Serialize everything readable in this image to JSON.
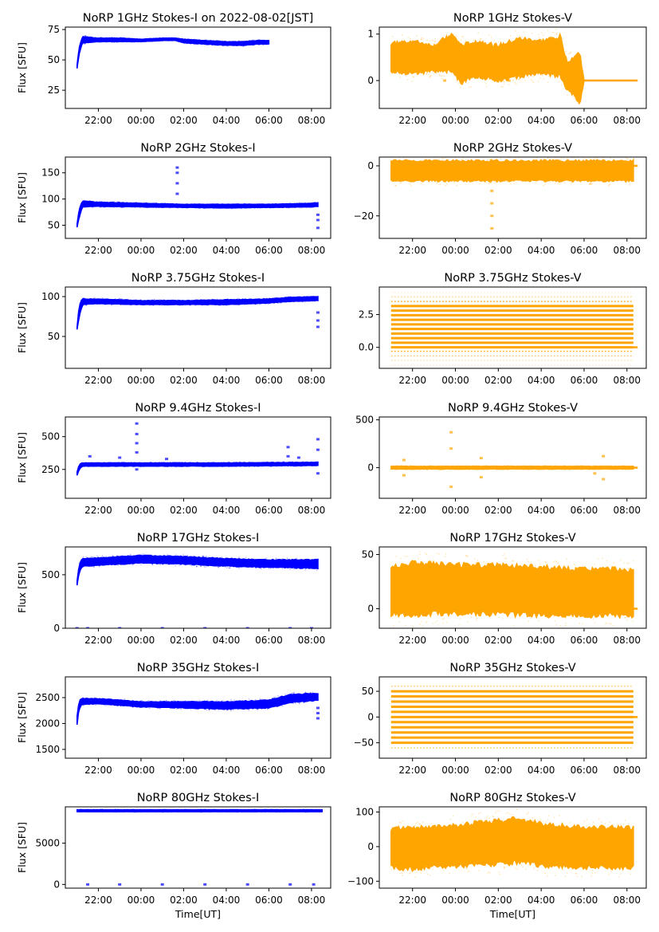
{
  "chart_data": [
    {
      "type": "scatter",
      "title": "NoRP 1GHz Stokes-I on 2022-08-02[JST]",
      "ylabel": "Flux [SFU]",
      "xlabel": "",
      "color": "#0000ff",
      "yticks": [
        25,
        50,
        75
      ],
      "ytick_labels": [
        "25",
        "50",
        "75"
      ],
      "ylim": [
        10,
        77
      ],
      "xtick_labels": [
        "22:00",
        "00:00",
        "02:00",
        "04:00",
        "06:00",
        "08:00"
      ],
      "band": {
        "t": [
          21.0,
          21.1,
          21.25,
          22,
          23,
          24,
          25,
          25.6,
          26,
          27,
          28,
          28.8,
          29.5,
          30.0
        ],
        "lo": [
          43,
          55,
          64,
          65,
          65,
          65,
          66,
          66,
          64,
          63,
          62,
          62,
          63,
          63
        ],
        "hi": [
          46,
          60,
          69,
          68,
          68,
          67,
          68,
          68,
          67,
          66,
          65,
          65,
          66,
          66
        ]
      },
      "outliers": []
    },
    {
      "type": "scatter",
      "title": "NoRP 1GHz Stokes-V",
      "ylabel": "",
      "xlabel": "",
      "color": "#ffa500",
      "yticks": [
        0,
        1
      ],
      "ytick_labels": [
        "0",
        "1"
      ],
      "ylim": [
        -0.6,
        1.15
      ],
      "xtick_labels": [
        "22:00",
        "00:00",
        "02:00",
        "04:00",
        "06:00",
        "08:00"
      ],
      "band": {
        "t": [
          21.0,
          22,
          23,
          23.8,
          24.3,
          25,
          26,
          27,
          28,
          28.9,
          29.2,
          29.5,
          29.8,
          30.0
        ],
        "lo": [
          0.2,
          0.15,
          0.2,
          0.2,
          -0.05,
          0.1,
          0.0,
          0.1,
          0.15,
          0.1,
          -0.2,
          -0.3,
          -0.5,
          0.0
        ],
        "hi": [
          0.8,
          0.85,
          0.75,
          1.0,
          0.75,
          0.85,
          0.75,
          0.9,
          0.85,
          0.95,
          0.4,
          0.5,
          0.6,
          0.0
        ]
      },
      "flat": {
        "t0": 30.0,
        "t1": 32.5,
        "y": 0
      },
      "outliers": [
        {
          "t": 23.5,
          "y": 0
        },
        {
          "t": 26.5,
          "y": 0
        }
      ]
    },
    {
      "type": "scatter",
      "title": "NoRP 2GHz Stokes-I",
      "ylabel": "Flux [SFU]",
      "xlabel": "",
      "color": "#0000ff",
      "yticks": [
        50,
        100,
        150
      ],
      "ytick_labels": [
        "50",
        "100",
        "150"
      ],
      "ylim": [
        25,
        180
      ],
      "xtick_labels": [
        "22:00",
        "00:00",
        "02:00",
        "04:00",
        "06:00",
        "08:00"
      ],
      "band": {
        "t": [
          21.0,
          21.1,
          21.25,
          22,
          24,
          26,
          28,
          30,
          32,
          32.3
        ],
        "lo": [
          46,
          65,
          85,
          86,
          85,
          84,
          83,
          84,
          85,
          86
        ],
        "hi": [
          52,
          80,
          96,
          94,
          92,
          90,
          90,
          90,
          92,
          93
        ]
      },
      "outliers": [
        {
          "t": 25.7,
          "y": 160
        },
        {
          "t": 25.7,
          "y": 150
        },
        {
          "t": 25.7,
          "y": 130
        },
        {
          "t": 25.7,
          "y": 110
        },
        {
          "t": 32.3,
          "y": 45
        },
        {
          "t": 32.3,
          "y": 60
        },
        {
          "t": 32.3,
          "y": 70
        }
      ]
    },
    {
      "type": "scatter",
      "title": "NoRP 2GHz Stokes-V",
      "ylabel": "",
      "xlabel": "",
      "color": "#ffa500",
      "yticks": [
        -20,
        0
      ],
      "ytick_labels": [
        "−20",
        "0"
      ],
      "ylim": [
        -29,
        3.5
      ],
      "xtick_labels": [
        "22:00",
        "00:00",
        "02:00",
        "04:00",
        "06:00",
        "08:00"
      ],
      "band": {
        "t": [
          21.0,
          24,
          28,
          32.3
        ],
        "lo": [
          -6,
          -6,
          -6,
          -6
        ],
        "hi": [
          2,
          2,
          2,
          2
        ]
      },
      "flat": {
        "t0": 32.3,
        "t1": 32.5,
        "y": 0
      },
      "outliers": [
        {
          "t": 25.7,
          "y": -10
        },
        {
          "t": 25.7,
          "y": -15
        },
        {
          "t": 25.7,
          "y": -20
        },
        {
          "t": 25.7,
          "y": -25
        }
      ]
    },
    {
      "type": "scatter",
      "title": "NoRP 3.75GHz Stokes-I",
      "ylabel": "Flux [SFU]",
      "xlabel": "",
      "color": "#0000ff",
      "yticks": [
        50,
        100
      ],
      "ytick_labels": [
        "50",
        "100"
      ],
      "ylim": [
        10,
        112
      ],
      "xtick_labels": [
        "22:00",
        "00:00",
        "02:00",
        "04:00",
        "06:00",
        "08:00"
      ],
      "band": {
        "t": [
          21.0,
          21.1,
          21.25,
          22,
          24,
          26,
          28,
          30,
          31,
          32.3
        ],
        "lo": [
          59,
          75,
          90,
          91,
          90,
          90,
          90,
          92,
          94,
          95
        ],
        "hi": [
          62,
          90,
          97,
          97,
          95,
          95,
          96,
          97,
          99,
          100
        ]
      },
      "outliers": [
        {
          "t": 32.3,
          "y": 62
        },
        {
          "t": 32.3,
          "y": 70
        },
        {
          "t": 32.3,
          "y": 80
        }
      ]
    },
    {
      "type": "scatter",
      "title": "NoRP 3.75GHz Stokes-V",
      "ylabel": "",
      "xlabel": "",
      "color": "#ffa500",
      "yticks": [
        0.0,
        2.5
      ],
      "ytick_labels": [
        "0.0",
        "2.5"
      ],
      "ylim": [
        -1.6,
        4.6
      ],
      "xtick_labels": [
        "22:00",
        "00:00",
        "02:00",
        "04:00",
        "06:00",
        "08:00"
      ],
      "levels": [
        -1.35,
        -1.0,
        -0.65,
        -0.3,
        0.0,
        0.35,
        0.7,
        1.05,
        1.4,
        1.75,
        2.1,
        2.45,
        2.8,
        3.15,
        3.5,
        3.85,
        4.2
      ],
      "level_strength": [
        0.15,
        0.3,
        0.5,
        0.8,
        1,
        1,
        1,
        1,
        1,
        1,
        1,
        1,
        1,
        1,
        0.8,
        0.4,
        0.15
      ],
      "band": {
        "t": [
          21.0,
          32.3
        ],
        "lo": [
          0,
          0
        ],
        "hi": [
          0,
          0
        ]
      },
      "flat": {
        "t0": 21.0,
        "t1": 32.5,
        "y": 0
      },
      "outliers": []
    },
    {
      "type": "scatter",
      "title": "NoRP 9.4GHz Stokes-I",
      "ylabel": "Flux [SFU]",
      "xlabel": "",
      "color": "#0000ff",
      "yticks": [
        250,
        500
      ],
      "ytick_labels": [
        "250",
        "500"
      ],
      "ylim": [
        30,
        650
      ],
      "xtick_labels": [
        "22:00",
        "00:00",
        "02:00",
        "04:00",
        "06:00",
        "08:00"
      ],
      "band": {
        "t": [
          21.0,
          21.1,
          21.25,
          24,
          28,
          32.3
        ],
        "lo": [
          205,
          250,
          275,
          275,
          275,
          280
        ],
        "hi": [
          230,
          290,
          300,
          300,
          300,
          305
        ]
      },
      "outliers": [
        {
          "t": 21.6,
          "y": 350
        },
        {
          "t": 23.0,
          "y": 340
        },
        {
          "t": 23.8,
          "y": 600
        },
        {
          "t": 23.8,
          "y": 520
        },
        {
          "t": 23.8,
          "y": 450
        },
        {
          "t": 23.8,
          "y": 380
        },
        {
          "t": 23.8,
          "y": 250
        },
        {
          "t": 25.2,
          "y": 330
        },
        {
          "t": 30.9,
          "y": 420
        },
        {
          "t": 30.9,
          "y": 350
        },
        {
          "t": 31.4,
          "y": 340
        },
        {
          "t": 32.3,
          "y": 480
        },
        {
          "t": 32.3,
          "y": 400
        },
        {
          "t": 32.3,
          "y": 220
        }
      ]
    },
    {
      "type": "scatter",
      "title": "NoRP 9.4GHz Stokes-V",
      "ylabel": "",
      "xlabel": "",
      "color": "#ffa500",
      "yticks": [
        0,
        500
      ],
      "ytick_labels": [
        "0",
        "500"
      ],
      "ylim": [
        -320,
        530
      ],
      "xtick_labels": [
        "22:00",
        "00:00",
        "02:00",
        "04:00",
        "06:00",
        "08:00"
      ],
      "band": {
        "t": [
          21.0,
          32.3
        ],
        "lo": [
          -15,
          -15
        ],
        "hi": [
          15,
          15
        ]
      },
      "flat": {
        "t0": 32.3,
        "t1": 32.5,
        "y": 0
      },
      "outliers": [
        {
          "t": 21.6,
          "y": -80
        },
        {
          "t": 21.6,
          "y": 80
        },
        {
          "t": 23.8,
          "y": 370
        },
        {
          "t": 23.8,
          "y": -200
        },
        {
          "t": 23.8,
          "y": 200
        },
        {
          "t": 25.2,
          "y": -100
        },
        {
          "t": 25.2,
          "y": 100
        },
        {
          "t": 30.9,
          "y": 120
        },
        {
          "t": 30.9,
          "y": -120
        },
        {
          "t": 30.5,
          "y": -60
        }
      ]
    },
    {
      "type": "scatter",
      "title": "NoRP 17GHz Stokes-I",
      "ylabel": "Flux [SFU]",
      "xlabel": "",
      "color": "#0000ff",
      "yticks": [
        0,
        500
      ],
      "ytick_labels": [
        "0",
        "500"
      ],
      "ylim": [
        0,
        760
      ],
      "xtick_labels": [
        "22:00",
        "00:00",
        "02:00",
        "04:00",
        "06:00",
        "08:00"
      ],
      "band": {
        "t": [
          21.0,
          21.1,
          21.25,
          24,
          26,
          28,
          30,
          32.3
        ],
        "lo": [
          400,
          520,
          580,
          610,
          600,
          580,
          570,
          560
        ],
        "hi": [
          440,
          600,
          650,
          680,
          670,
          650,
          640,
          640
        ]
      },
      "outliers": [
        {
          "t": 21.0,
          "y": 0
        },
        {
          "t": 21.5,
          "y": 0
        },
        {
          "t": 23.0,
          "y": 0
        },
        {
          "t": 25.0,
          "y": 0
        },
        {
          "t": 27.0,
          "y": 0
        },
        {
          "t": 29.0,
          "y": 0
        },
        {
          "t": 31.0,
          "y": 0
        },
        {
          "t": 32.0,
          "y": 0
        }
      ]
    },
    {
      "type": "scatter",
      "title": "NoRP 17GHz Stokes-V",
      "ylabel": "",
      "xlabel": "",
      "color": "#ffa500",
      "yticks": [
        0,
        50
      ],
      "ytick_labels": [
        "0",
        "50"
      ],
      "ylim": [
        -18,
        57
      ],
      "xtick_labels": [
        "22:00",
        "00:00",
        "02:00",
        "04:00",
        "06:00",
        "08:00"
      ],
      "band": {
        "t": [
          21.0,
          22,
          24,
          26,
          28,
          30,
          32.3
        ],
        "lo": [
          -5,
          -5,
          -4,
          -5,
          -6,
          -6,
          -6
        ],
        "hi": [
          38,
          42,
          40,
          40,
          38,
          36,
          36
        ]
      },
      "flat": {
        "t0": 21.0,
        "t1": 32.5,
        "y": 0
      },
      "outliers": []
    },
    {
      "type": "scatter",
      "title": "NoRP 35GHz Stokes-I",
      "ylabel": "Flux [SFU]",
      "xlabel": "",
      "color": "#0000ff",
      "yticks": [
        1500,
        2000,
        2500
      ],
      "ytick_labels": [
        "1500",
        "2000",
        "2500"
      ],
      "ylim": [
        1330,
        2900
      ],
      "xtick_labels": [
        "22:00",
        "00:00",
        "02:00",
        "04:00",
        "06:00",
        "08:00"
      ],
      "band": {
        "t": [
          21.0,
          21.1,
          21.25,
          22,
          24,
          26,
          28,
          30,
          31,
          32.3
        ],
        "lo": [
          1980,
          2300,
          2370,
          2380,
          2320,
          2300,
          2280,
          2300,
          2400,
          2450
        ],
        "hi": [
          2150,
          2450,
          2480,
          2480,
          2420,
          2420,
          2420,
          2450,
          2560,
          2580
        ]
      },
      "outliers": [
        {
          "t": 32.3,
          "y": 2100
        },
        {
          "t": 32.3,
          "y": 2200
        },
        {
          "t": 32.3,
          "y": 2300
        }
      ]
    },
    {
      "type": "scatter",
      "title": "NoRP 35GHz Stokes-V",
      "ylabel": "",
      "xlabel": "",
      "color": "#ffa500",
      "yticks": [
        -50,
        0,
        50
      ],
      "ytick_labels": [
        "−50",
        "0",
        "50"
      ],
      "ylim": [
        -80,
        78
      ],
      "xtick_labels": [
        "22:00",
        "00:00",
        "02:00",
        "04:00",
        "06:00",
        "08:00"
      ],
      "levels": [
        -60,
        -50,
        -40,
        -30,
        -20,
        -10,
        0,
        10,
        20,
        30,
        40,
        50,
        60
      ],
      "level_strength": [
        0.5,
        1,
        1,
        1,
        1,
        1,
        1,
        1,
        1,
        1,
        1,
        1,
        0.5
      ],
      "band": {
        "t": [
          21.0,
          32.3
        ],
        "lo": [
          0,
          0
        ],
        "hi": [
          0,
          0
        ]
      },
      "flat": {
        "t0": 21.0,
        "t1": 32.5,
        "y": 0
      },
      "outliers": []
    },
    {
      "type": "scatter",
      "title": "NoRP 80GHz Stokes-I",
      "ylabel": "Flux [SFU]",
      "xlabel": "Time[UT]",
      "color": "#0000ff",
      "yticks": [
        0,
        5000
      ],
      "ytick_labels": [
        "0",
        "5000"
      ],
      "ylim": [
        -450,
        9400
      ],
      "xtick_labels": [
        "22:00",
        "00:00",
        "02:00",
        "04:00",
        "06:00",
        "08:00"
      ],
      "band": {
        "t": [
          21.0,
          32.5
        ],
        "lo": [
          8800,
          8800
        ],
        "hi": [
          9050,
          9050
        ]
      },
      "outliers": [
        {
          "t": 21.5,
          "y": 0
        },
        {
          "t": 23.0,
          "y": 0
        },
        {
          "t": 25.0,
          "y": 0
        },
        {
          "t": 27.0,
          "y": 0
        },
        {
          "t": 29.0,
          "y": 0
        },
        {
          "t": 31.0,
          "y": 0
        },
        {
          "t": 32.1,
          "y": 0
        }
      ]
    },
    {
      "type": "scatter",
      "title": "NoRP 80GHz Stokes-V",
      "ylabel": "",
      "xlabel": "Time[UT]",
      "color": "#ffa500",
      "yticks": [
        -100,
        0,
        100
      ],
      "ytick_labels": [
        "−100",
        "0",
        "100"
      ],
      "ylim": [
        -120,
        115
      ],
      "xtick_labels": [
        "22:00",
        "00:00",
        "02:00",
        "04:00",
        "06:00",
        "08:00"
      ],
      "band": {
        "t": [
          21.0,
          22,
          24,
          26,
          27,
          28,
          30,
          32.3
        ],
        "lo": [
          -60,
          -65,
          -55,
          -50,
          -45,
          -55,
          -60,
          -60
        ],
        "hi": [
          50,
          55,
          60,
          75,
          80,
          65,
          55,
          55
        ]
      },
      "outliers": []
    }
  ]
}
